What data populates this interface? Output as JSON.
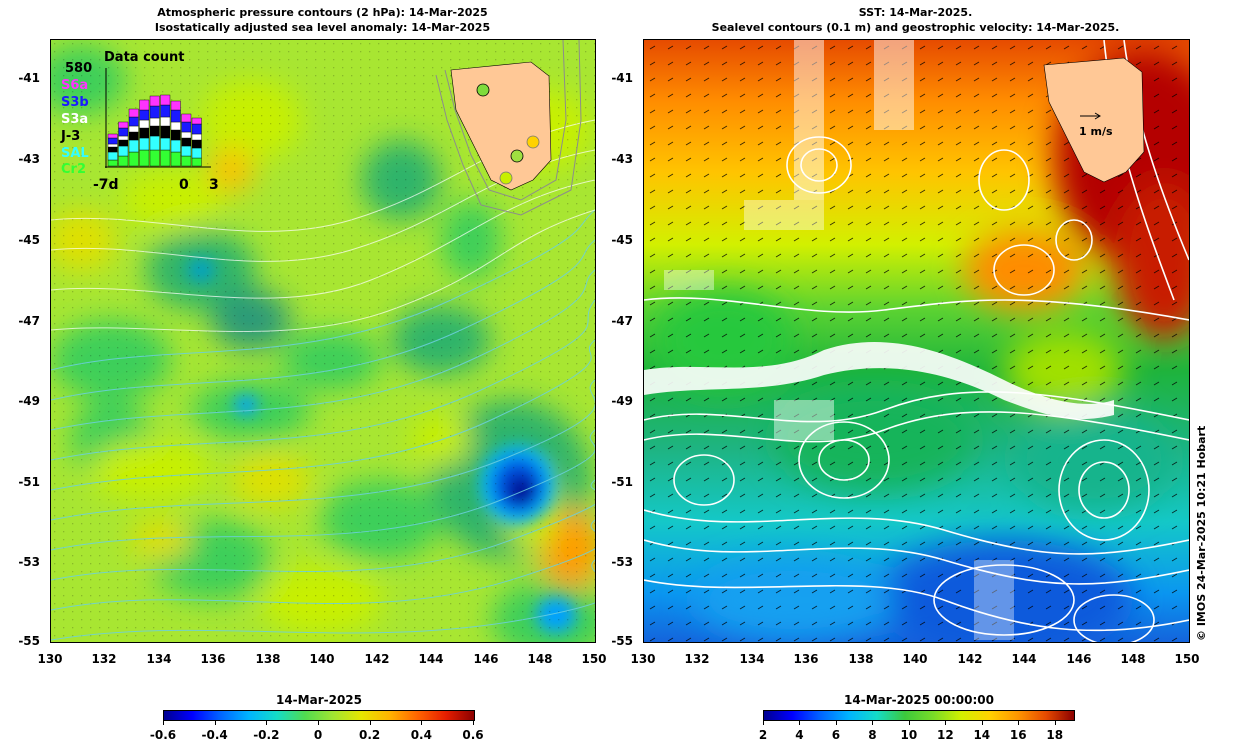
{
  "left_panel": {
    "title_line1": "Atmospheric pressure contours (2 hPa): 14-Mar-2025",
    "title_line2": "Isostatically adjusted sea level anomaly: 14-Mar-2025",
    "colorbar": {
      "title": "14-Mar-2025",
      "ticks": [
        "-0.6",
        "-0.4",
        "-0.2",
        "0",
        "0.2",
        "0.4",
        "0.6"
      ],
      "range": [
        -0.6,
        0.6
      ]
    },
    "inset": {
      "title": "Data count",
      "max_count": "580",
      "legend": [
        {
          "label": "S6a",
          "color": "#ff33ff"
        },
        {
          "label": "S3b",
          "color": "#1a1aff"
        },
        {
          "label": "S3a",
          "color": "#ffffff"
        },
        {
          "label": "J-3",
          "color": "#000000"
        },
        {
          "label": "SAL",
          "color": "#33ffff"
        },
        {
          "label": "Cr2",
          "color": "#33ff33"
        }
      ],
      "xticks": [
        "-7d",
        "0",
        "3"
      ]
    }
  },
  "right_panel": {
    "title_line1": "SST: 14-Mar-2025.",
    "title_line2": "Sealevel contours (0.1 m) and geostrophic velocity: 14-Mar-2025.",
    "speed_scale": "1 m/s",
    "colorbar": {
      "title": "14-Mar-2025 00:00:00",
      "ticks": [
        "2",
        "4",
        "6",
        "8",
        "10",
        "12",
        "14",
        "16",
        "18"
      ],
      "range": [
        2,
        19
      ]
    }
  },
  "axes": {
    "lat_ticks": [
      "-41",
      "-43",
      "-45",
      "-47",
      "-49",
      "-51",
      "-53",
      "-55"
    ],
    "lon_ticks": [
      "130",
      "132",
      "134",
      "136",
      "138",
      "140",
      "142",
      "144",
      "146",
      "148",
      "150"
    ]
  },
  "copyright": "© IMOS 24-Mar-2025 10:21 Hobart",
  "colors": {
    "land": "#ffc896",
    "jet_stops": [
      "#00008f",
      "#0000ff",
      "#00a0ff",
      "#00e6c8",
      "#50dc50",
      "#c8f000",
      "#ffd200",
      "#ff8c00",
      "#e61e00",
      "#8c0000"
    ]
  }
}
